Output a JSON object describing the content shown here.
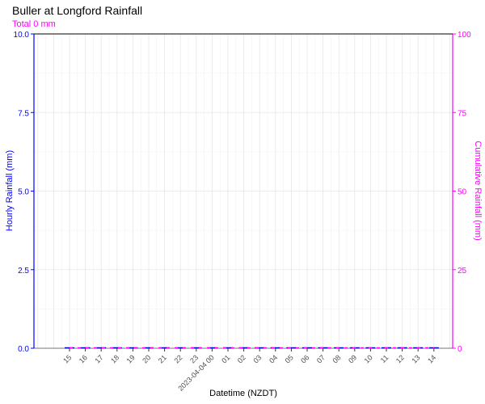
{
  "chart_data": {
    "type": "bar",
    "title": "Buller at Longford Rainfall",
    "subtitle": "Total 0 mm",
    "xlabel": "Datetime (NZDT)",
    "ylabel": "Hourly Rainfall (mm)",
    "y2label": "Cumulative Rainfall (mm)",
    "ylim": [
      0,
      10
    ],
    "y2lim": [
      0,
      100
    ],
    "yticks": [
      "0.0",
      "2.5",
      "5.0",
      "7.5",
      "10.0"
    ],
    "y2ticks": [
      "0",
      "25",
      "50",
      "75",
      "100"
    ],
    "categories": [
      "15",
      "16",
      "17",
      "18",
      "19",
      "20",
      "21",
      "22",
      "23",
      "2023-04-04 00",
      "01",
      "02",
      "03",
      "04",
      "05",
      "06",
      "07",
      "08",
      "09",
      "10",
      "11",
      "12",
      "13",
      "14"
    ],
    "series": [
      {
        "values": [
          0,
          0,
          0,
          0,
          0,
          0,
          0,
          0,
          0,
          0,
          0,
          0,
          0,
          0,
          0,
          0,
          0,
          0,
          0,
          0,
          0,
          0,
          0,
          0
        ]
      },
      {
        "values": [
          0,
          0,
          0,
          0,
          0,
          0,
          0,
          0,
          0,
          0,
          0,
          0,
          0,
          0,
          0,
          0,
          0,
          0,
          0,
          0,
          0,
          0,
          0,
          0
        ]
      }
    ],
    "grid": true,
    "colors": {
      "primary_axis": "#0000ff",
      "secondary_axis": "#ff00ff",
      "grid": "#e6e6e6"
    }
  }
}
